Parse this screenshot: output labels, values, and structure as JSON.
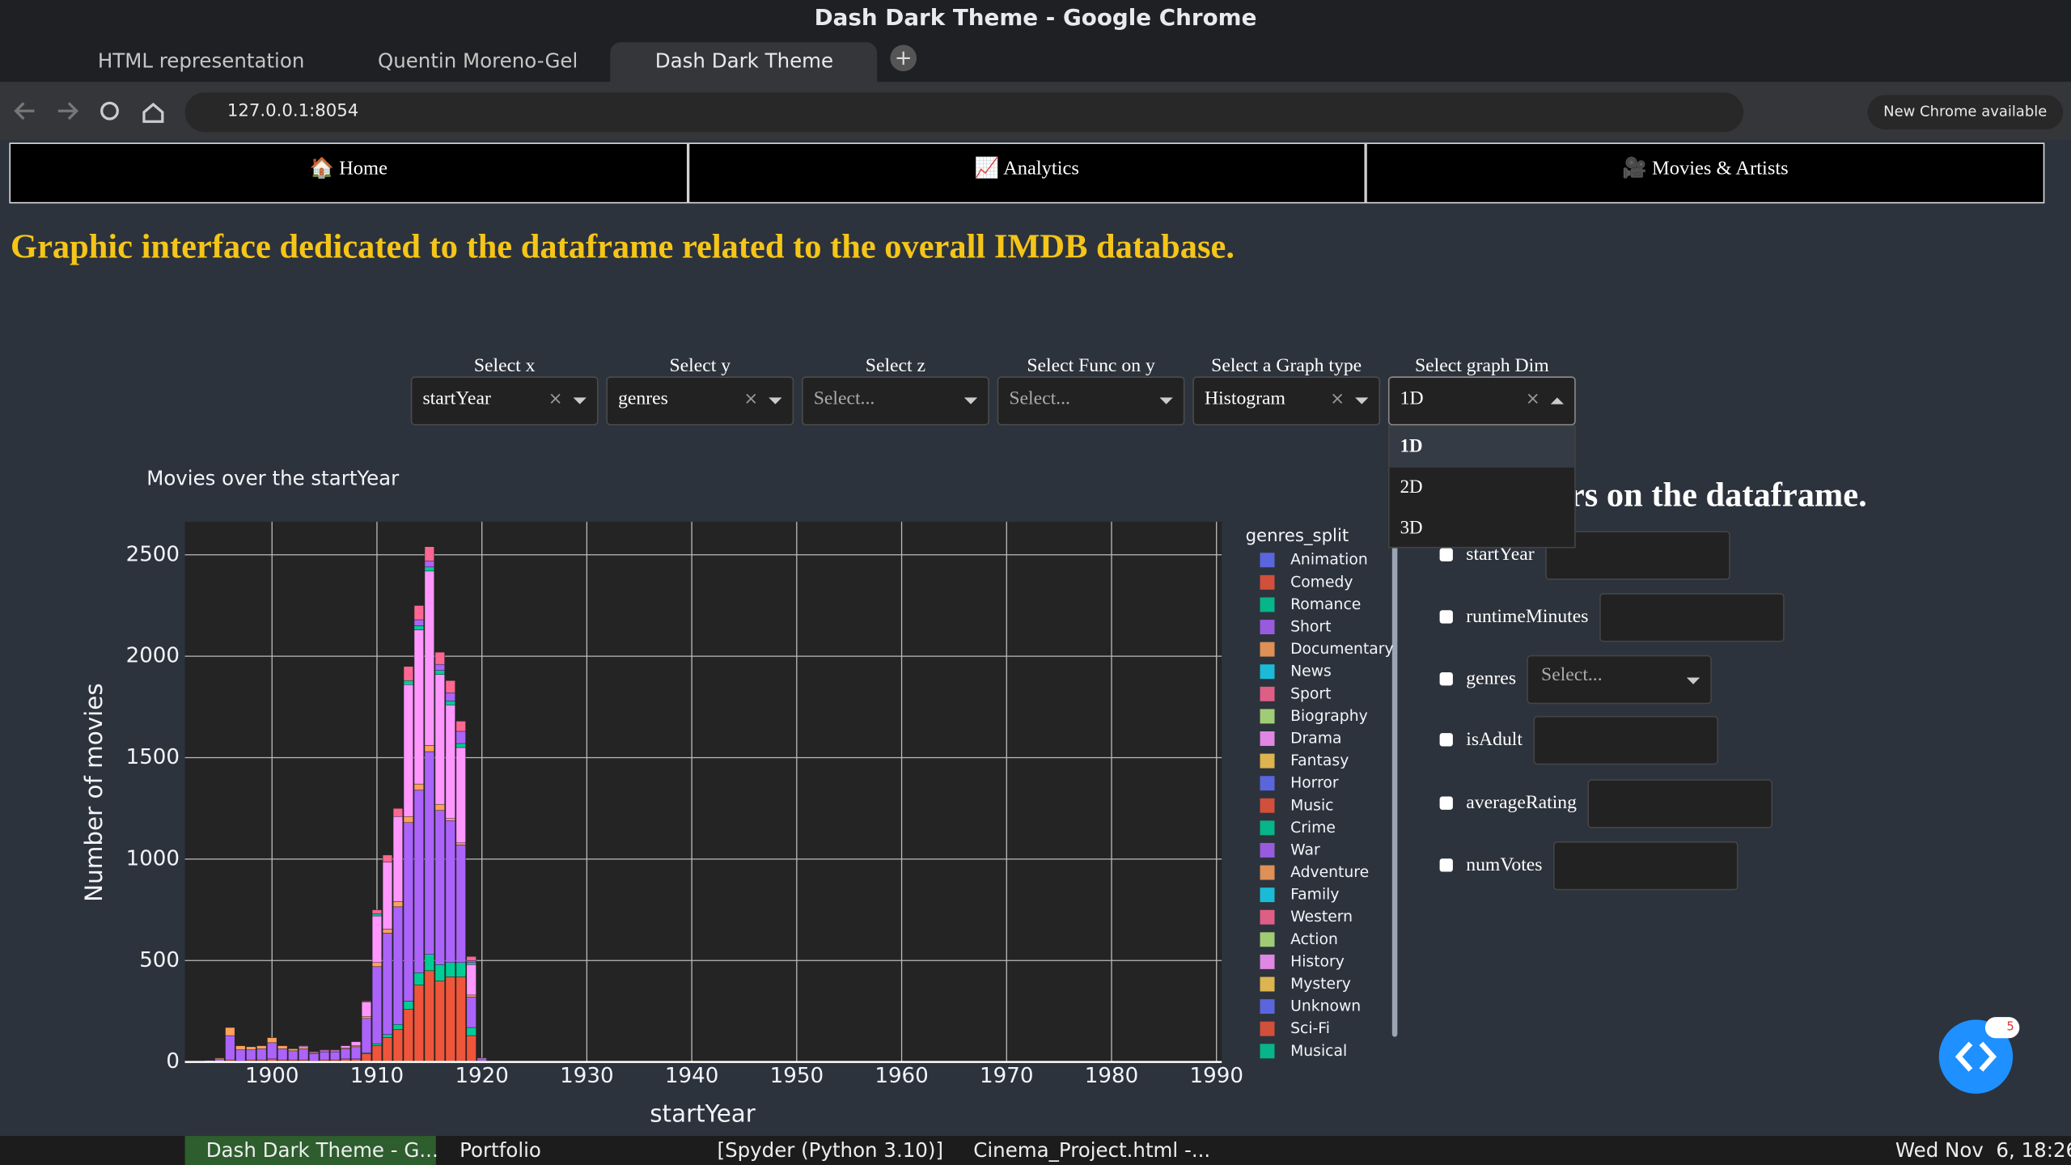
{
  "window_title": "Dash Dark Theme - Google Chrome",
  "tabs": [
    "HTML representation",
    "Quentin Moreno-Gel",
    "Dash Dark Theme"
  ],
  "url": "127.0.0.1:8054",
  "chrome_notice": "New Chrome available",
  "nav": [
    "🏠 Home",
    "📈 Analytics",
    "🎥 Movies & Artists"
  ],
  "heading": "Graphic interface dedicated to the dataframe related to the overall IMDB database.",
  "controls": [
    {
      "label": "Select x",
      "value": "startYear"
    },
    {
      "label": "Select y",
      "value": "genres"
    },
    {
      "label": "Select z",
      "placeholder": "Select..."
    },
    {
      "label": "Select Func on y",
      "placeholder": "Select..."
    },
    {
      "label": "Select a Graph type",
      "value": "Histogram"
    },
    {
      "label": "Select graph Dim",
      "value": "1D"
    }
  ],
  "dim_options": [
    "1D",
    "2D",
    "3D"
  ],
  "filters_heading": "ters on the dataframe.",
  "filters": [
    {
      "label": "startYear"
    },
    {
      "label": "runtimeMinutes"
    },
    {
      "label": "genres",
      "placeholder": "Select..."
    },
    {
      "label": "isAdult"
    },
    {
      "label": "averageRating"
    },
    {
      "label": "numVotes"
    }
  ],
  "badge": "5",
  "taskbar": {
    "items": [
      "Dash Dark Theme - G...",
      "Portfolio",
      "[Spyder (Python 3.10)]",
      "Cinema_Project.html -..."
    ],
    "clock": "Wed Nov  6, 18:26"
  },
  "chart_data": {
    "type": "histogram",
    "title": "Movies over the startYear",
    "x_label": "startYear",
    "y_label": "Number of movies",
    "legend_title": "genres_split",
    "bins": [
      1892.5,
      1893.5,
      1894.5,
      1895.5,
      1896.5,
      1897.5,
      1898.5,
      1899.5,
      1900.5,
      1901.5,
      1902.5,
      1903.5,
      1904.5,
      1905.5,
      1906.5,
      1907.5,
      1908.5,
      1909.5,
      1910.5,
      1911.5,
      1912.5,
      1913.5,
      1914.5,
      1915.5,
      1916.5,
      1917.5,
      1918.5,
      1919.5,
      1920.5
    ],
    "xlim": [
      1891.7,
      1990.5
    ],
    "xticks": [
      1900,
      1910,
      1920,
      1930,
      1940,
      1950,
      1960,
      1970,
      1980,
      1990
    ],
    "ylim": [
      0,
      2663
    ],
    "yticks": [
      0,
      500,
      1000,
      1500,
      2000,
      2500
    ],
    "grid": true,
    "stacked": true,
    "series": [
      {
        "name": "Animation",
        "color": "#636efa",
        "values": [
          0,
          0,
          0,
          0,
          0,
          0,
          0,
          0,
          0,
          0,
          0,
          0,
          0,
          0,
          0,
          0,
          0,
          0,
          0,
          0,
          0,
          0,
          0,
          0,
          0,
          0,
          0,
          0
        ]
      },
      {
        "name": "Comedy",
        "color": "#ef553b",
        "values": [
          0,
          0,
          0,
          10,
          5,
          10,
          10,
          15,
          10,
          10,
          10,
          5,
          10,
          10,
          15,
          15,
          40,
          80,
          120,
          160,
          260,
          380,
          450,
          400,
          420,
          420,
          130,
          5
        ]
      },
      {
        "name": "Romance",
        "color": "#00cc96",
        "values": [
          0,
          0,
          0,
          0,
          0,
          0,
          0,
          0,
          0,
          0,
          0,
          0,
          0,
          0,
          0,
          0,
          5,
          10,
          15,
          25,
          40,
          60,
          80,
          80,
          70,
          70,
          40,
          0
        ]
      },
      {
        "name": "Short",
        "color": "#ab63fa",
        "values": [
          5,
          8,
          15,
          120,
          55,
          50,
          55,
          80,
          55,
          45,
          55,
          35,
          40,
          40,
          50,
          60,
          170,
          380,
          500,
          580,
          880,
          900,
          1000,
          760,
          700,
          580,
          150,
          10
        ]
      },
      {
        "name": "Documentary",
        "color": "#ffa15a",
        "values": [
          0,
          2,
          5,
          40,
          20,
          15,
          15,
          25,
          15,
          10,
          10,
          5,
          5,
          5,
          5,
          5,
          10,
          20,
          20,
          25,
          30,
          30,
          30,
          30,
          10,
          10,
          10,
          0
        ]
      },
      {
        "name": "News",
        "color": "#19d3f3",
        "values": [
          0,
          0,
          0,
          0,
          0,
          0,
          0,
          0,
          0,
          0,
          0,
          0,
          0,
          0,
          0,
          0,
          0,
          0,
          0,
          0,
          0,
          0,
          0,
          0,
          0,
          0,
          0,
          0
        ]
      },
      {
        "name": "Sport",
        "color": "#ff6692",
        "values": [
          0,
          0,
          0,
          0,
          0,
          0,
          0,
          0,
          0,
          0,
          0,
          0,
          0,
          0,
          0,
          0,
          0,
          0,
          0,
          0,
          0,
          0,
          0,
          0,
          0,
          0,
          0,
          0
        ]
      },
      {
        "name": "Biography",
        "color": "#b6e880",
        "values": [
          0,
          0,
          0,
          0,
          0,
          0,
          0,
          0,
          0,
          0,
          0,
          0,
          0,
          0,
          0,
          0,
          0,
          0,
          0,
          0,
          0,
          0,
          0,
          0,
          0,
          0,
          0,
          0
        ]
      },
      {
        "name": "Drama",
        "color": "#ff97ff",
        "values": [
          0,
          0,
          0,
          0,
          0,
          0,
          0,
          0,
          0,
          0,
          5,
          5,
          5,
          5,
          10,
          20,
          70,
          230,
          330,
          420,
          650,
          760,
          860,
          640,
          560,
          470,
          150,
          5
        ]
      },
      {
        "name": "Fantasy",
        "color": "#fecb52",
        "values": [
          0,
          0,
          0,
          0,
          0,
          0,
          0,
          0,
          0,
          0,
          0,
          0,
          0,
          0,
          0,
          0,
          0,
          0,
          0,
          0,
          0,
          0,
          0,
          0,
          0,
          0,
          0,
          0
        ]
      },
      {
        "name": "Horror",
        "color": "#636efa",
        "values": [
          0,
          0,
          0,
          0,
          0,
          0,
          0,
          0,
          0,
          0,
          0,
          0,
          0,
          0,
          0,
          0,
          0,
          0,
          0,
          0,
          0,
          0,
          0,
          0,
          0,
          0,
          0,
          0
        ]
      },
      {
        "name": "Music",
        "color": "#ef553b",
        "values": [
          0,
          0,
          0,
          0,
          0,
          0,
          0,
          0,
          0,
          0,
          0,
          0,
          0,
          0,
          0,
          0,
          0,
          0,
          0,
          0,
          0,
          0,
          0,
          0,
          0,
          0,
          0,
          0
        ]
      },
      {
        "name": "Crime",
        "color": "#00cc96",
        "values": [
          0,
          0,
          0,
          0,
          0,
          0,
          0,
          0,
          0,
          0,
          0,
          0,
          0,
          0,
          0,
          0,
          0,
          10,
          0,
          0,
          20,
          20,
          20,
          20,
          20,
          20,
          10,
          0
        ]
      },
      {
        "name": "War",
        "color": "#ab63fa",
        "values": [
          0,
          0,
          0,
          0,
          0,
          0,
          0,
          0,
          0,
          0,
          0,
          0,
          0,
          0,
          0,
          0,
          0,
          0,
          0,
          0,
          0,
          30,
          30,
          30,
          40,
          60,
          10,
          0
        ]
      },
      {
        "name": "Adventure",
        "color": "#ffa15a",
        "values": [
          0,
          0,
          0,
          0,
          0,
          0,
          0,
          0,
          0,
          0,
          0,
          0,
          0,
          0,
          0,
          0,
          0,
          0,
          0,
          0,
          0,
          0,
          0,
          0,
          0,
          0,
          0,
          0
        ]
      },
      {
        "name": "Family",
        "color": "#19d3f3",
        "values": [
          0,
          0,
          0,
          0,
          0,
          0,
          0,
          0,
          0,
          0,
          0,
          0,
          0,
          0,
          0,
          0,
          0,
          0,
          0,
          0,
          0,
          0,
          0,
          0,
          0,
          0,
          0,
          0
        ]
      },
      {
        "name": "Western",
        "color": "#ff6692",
        "values": [
          0,
          0,
          0,
          0,
          0,
          0,
          0,
          0,
          0,
          0,
          0,
          0,
          0,
          0,
          0,
          0,
          5,
          20,
          35,
          40,
          70,
          70,
          70,
          60,
          60,
          50,
          20,
          0
        ]
      },
      {
        "name": "Action",
        "color": "#b6e880",
        "values": [
          0,
          0,
          0,
          0,
          0,
          0,
          0,
          0,
          0,
          0,
          0,
          0,
          0,
          0,
          0,
          0,
          0,
          0,
          0,
          0,
          0,
          0,
          0,
          0,
          0,
          0,
          0,
          0
        ]
      },
      {
        "name": "History",
        "color": "#ff97ff",
        "values": [
          0,
          0,
          0,
          0,
          0,
          0,
          0,
          0,
          0,
          0,
          0,
          0,
          0,
          0,
          0,
          0,
          0,
          0,
          0,
          0,
          0,
          0,
          0,
          0,
          0,
          0,
          0,
          0
        ]
      },
      {
        "name": "Mystery",
        "color": "#fecb52",
        "values": [
          0,
          0,
          0,
          0,
          0,
          0,
          0,
          0,
          0,
          0,
          0,
          0,
          0,
          0,
          0,
          0,
          0,
          0,
          0,
          0,
          0,
          0,
          0,
          0,
          0,
          0,
          0,
          0
        ]
      },
      {
        "name": "Unknown",
        "color": "#636efa",
        "values": [
          0,
          0,
          0,
          0,
          0,
          0,
          0,
          0,
          0,
          0,
          0,
          0,
          0,
          0,
          0,
          0,
          0,
          0,
          0,
          0,
          0,
          0,
          0,
          0,
          0,
          0,
          0,
          0
        ]
      },
      {
        "name": "Sci-Fi",
        "color": "#ef553b",
        "values": [
          0,
          0,
          0,
          0,
          0,
          0,
          0,
          0,
          0,
          0,
          0,
          0,
          0,
          0,
          0,
          0,
          0,
          0,
          0,
          0,
          0,
          0,
          0,
          0,
          0,
          0,
          0,
          0
        ]
      },
      {
        "name": "Musical",
        "color": "#00cc96",
        "values": [
          0,
          0,
          0,
          0,
          0,
          0,
          0,
          0,
          0,
          0,
          0,
          0,
          0,
          0,
          0,
          0,
          0,
          0,
          0,
          0,
          0,
          0,
          0,
          0,
          0,
          0,
          0,
          0
        ]
      }
    ]
  }
}
